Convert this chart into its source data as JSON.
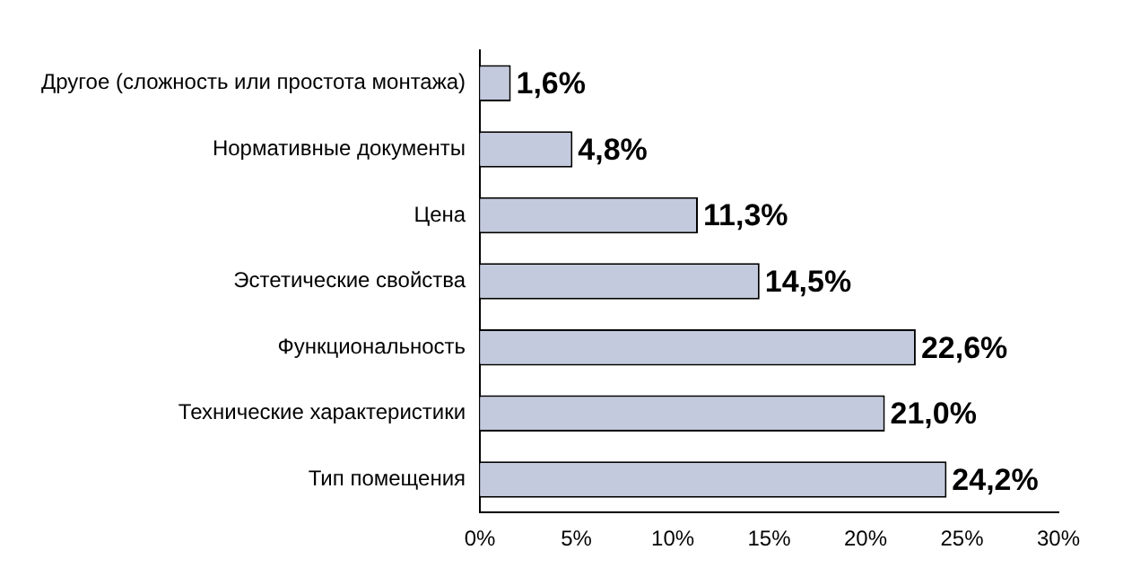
{
  "chart_data": {
    "type": "bar",
    "orientation": "horizontal",
    "categories": [
      "Другое (сложность или простота монтажа)",
      "Нормативные документы",
      "Цена",
      "Эстетические свойства",
      "Функциональность",
      "Технические характеристики",
      "Тип помещения"
    ],
    "values": [
      1.6,
      4.8,
      11.3,
      14.5,
      22.6,
      21.0,
      24.2
    ],
    "value_labels": [
      "1,6%",
      "4,8%",
      "11,3%",
      "14,5%",
      "22,6%",
      "21,0%",
      "24,2%"
    ],
    "color": "#c3cade",
    "xlim": [
      0,
      30
    ],
    "xticks": [
      {
        "value": 0,
        "label": "0%"
      },
      {
        "value": 5,
        "label": "5%"
      },
      {
        "value": 10,
        "label": "10%"
      },
      {
        "value": 15,
        "label": "15%"
      },
      {
        "value": 20,
        "label": "20%"
      },
      {
        "value": 25,
        "label": "25%"
      },
      {
        "value": 30,
        "label": "30%"
      }
    ],
    "grid": false,
    "legend": false
  }
}
